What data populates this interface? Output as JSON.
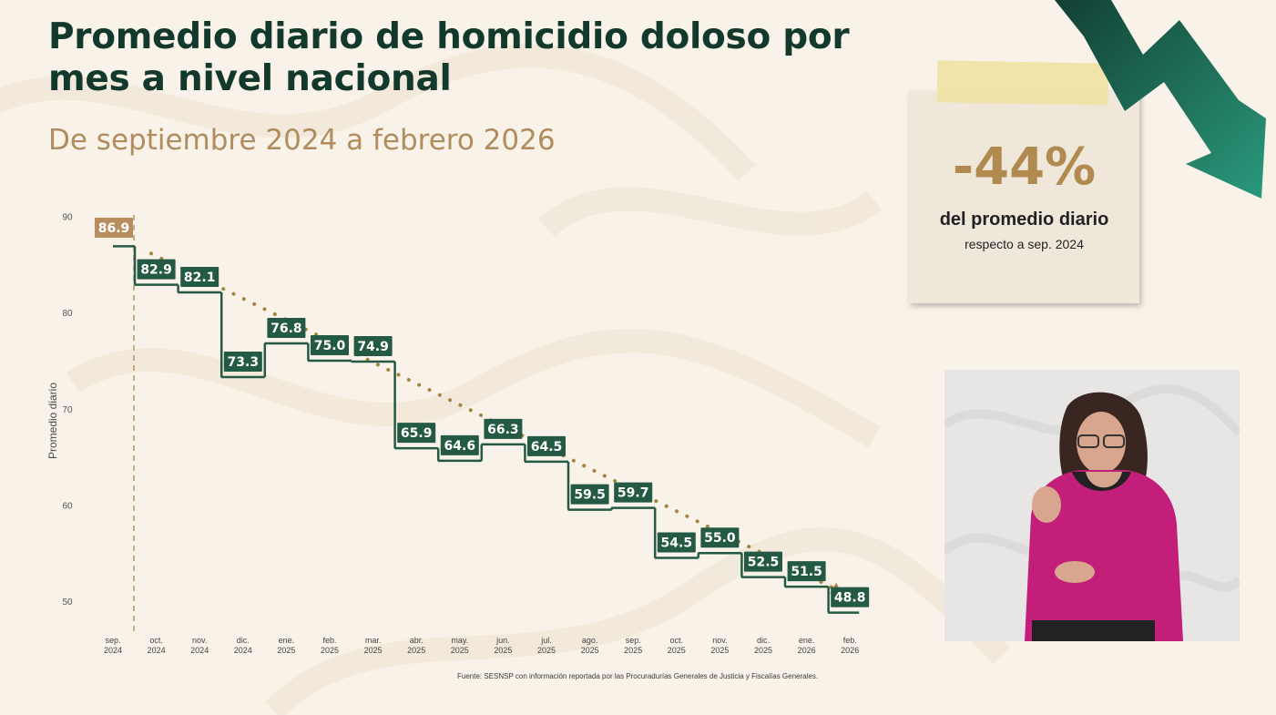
{
  "header": {
    "title": "Promedio diario de homicidio doloso por mes a nivel nacional",
    "subtitle": "De septiembre 2024 a febrero 2026"
  },
  "stat_card": {
    "value": "-44%",
    "line1": "del promedio diario",
    "line2": "respecto a sep. 2024"
  },
  "source": "Fuente: SESNSP con información reportada por las Procuradurías Generales de Justicia y Fiscalías Generales.",
  "colors": {
    "title": "#12392c",
    "subtitle": "#b08d5e",
    "step_line": "#245a44",
    "label_bg": "#245a44",
    "first_label_bg": "#b98e5f",
    "trend_dots": "#a48540",
    "accent_pct": "#b08a4e",
    "arrow": "#1e7a5e"
  },
  "chart_data": {
    "type": "line",
    "step": true,
    "ylabel": "Promedio diario",
    "xlabel": "",
    "ylim": [
      48,
      90
    ],
    "yticks": [
      50,
      60,
      70,
      80,
      90
    ],
    "categories": [
      [
        "sep.",
        "2024"
      ],
      [
        "oct.",
        "2024"
      ],
      [
        "nov.",
        "2024"
      ],
      [
        "dic.",
        "2024"
      ],
      [
        "ene.",
        "2025"
      ],
      [
        "feb.",
        "2025"
      ],
      [
        "mar.",
        "2025"
      ],
      [
        "abr.",
        "2025"
      ],
      [
        "may.",
        "2025"
      ],
      [
        "jun.",
        "2025"
      ],
      [
        "jul.",
        "2025"
      ],
      [
        "ago.",
        "2025"
      ],
      [
        "sep.",
        "2025"
      ],
      [
        "oct.",
        "2025"
      ],
      [
        "nov.",
        "2025"
      ],
      [
        "dic.",
        "2025"
      ],
      [
        "ene.",
        "2026"
      ],
      [
        "feb.",
        "2026"
      ]
    ],
    "values": [
      86.9,
      82.9,
      82.1,
      73.3,
      76.8,
      75.0,
      74.9,
      65.9,
      64.6,
      66.3,
      64.5,
      59.5,
      59.7,
      54.5,
      55.0,
      52.5,
      51.5,
      48.8
    ],
    "labels": [
      "86.9",
      "82.9",
      "82.1",
      "73.3",
      "76.8",
      "75.0",
      "74.9",
      "65.9",
      "64.6",
      "66.3",
      "64.5",
      "59.5",
      "59.7",
      "54.5",
      "55.0",
      "52.5",
      "51.5",
      "48.8"
    ],
    "trend": "dotted line from first to last value",
    "grid": false
  }
}
